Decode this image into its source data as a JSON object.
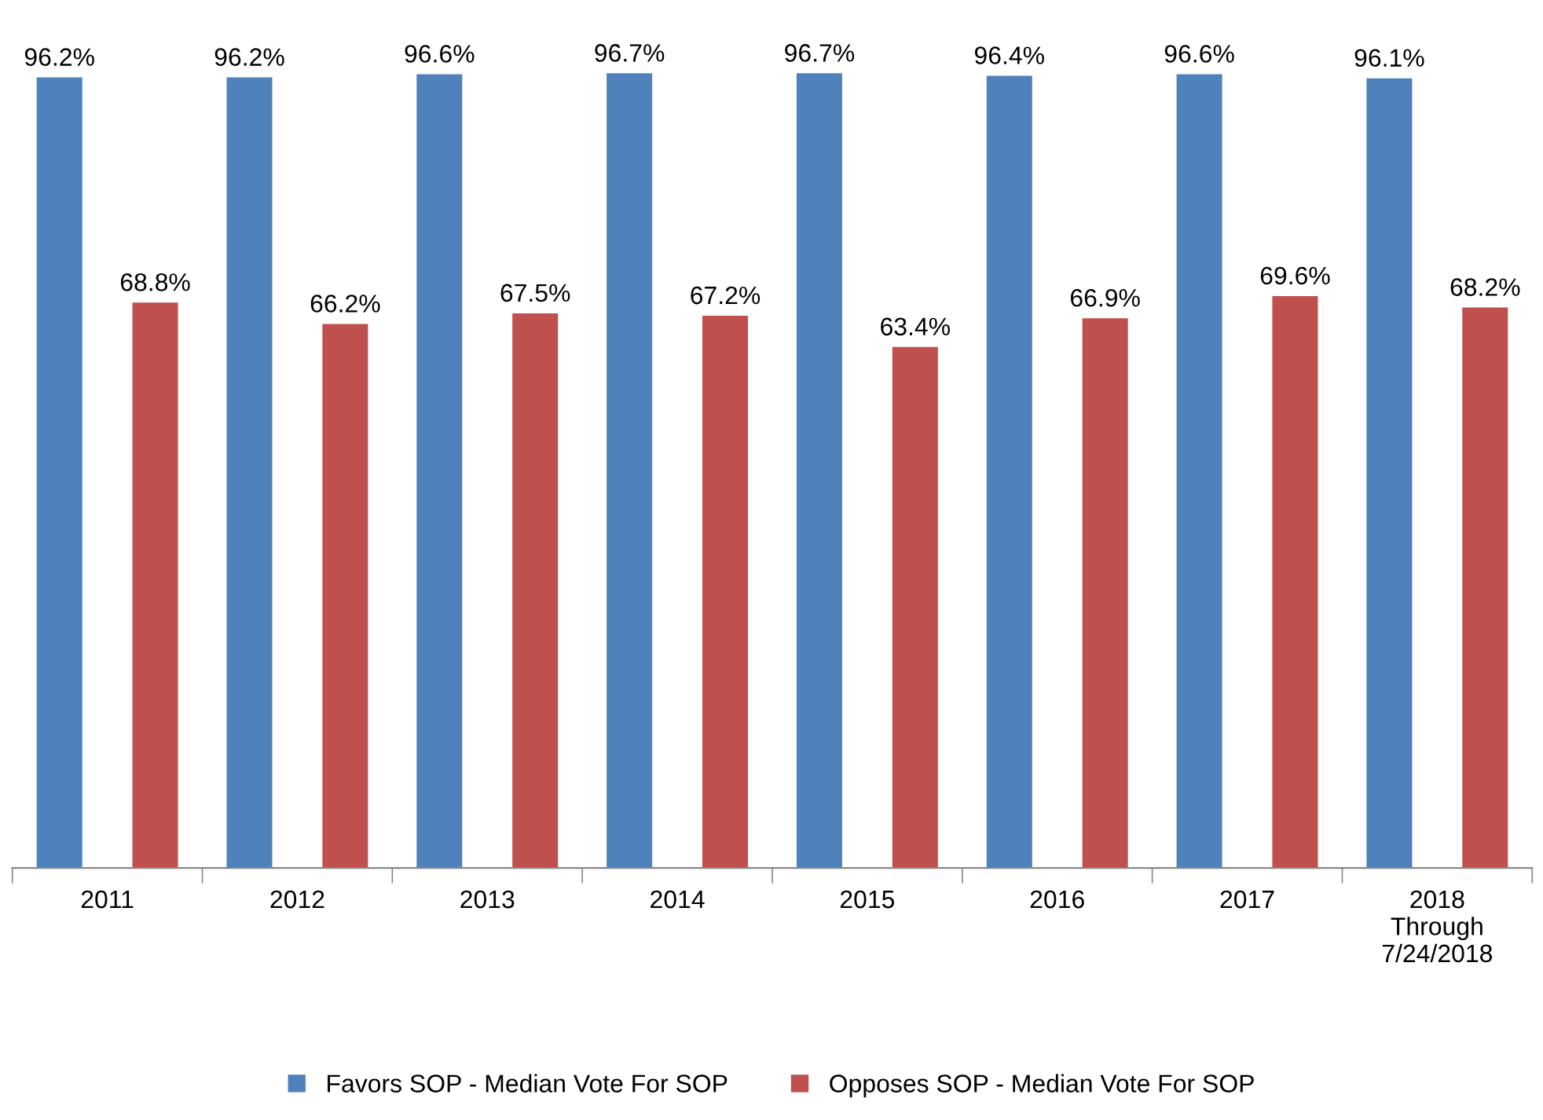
{
  "chart_data": {
    "type": "bar",
    "categories": [
      "2011",
      "2012",
      "2013",
      "2014",
      "2015",
      "2016",
      "2017",
      "2018\nThrough\n7/24/2018"
    ],
    "series": [
      {
        "name": "Favors SOP - Median Vote For SOP",
        "color": "#4f81bd",
        "values": [
          96.2,
          96.2,
          96.6,
          96.7,
          96.7,
          96.4,
          96.6,
          96.1
        ],
        "value_labels": [
          "96.2%",
          "96.2%",
          "96.6%",
          "96.7%",
          "96.7%",
          "96.4%",
          "96.6%",
          "96.1%"
        ]
      },
      {
        "name": "Opposes SOP - Median Vote For SOP",
        "color": "#c0504d",
        "values": [
          68.8,
          66.2,
          67.5,
          67.2,
          63.4,
          66.9,
          69.6,
          68.2
        ],
        "value_labels": [
          "68.8%",
          "66.2%",
          "67.5%",
          "67.2%",
          "63.4%",
          "66.9%",
          "69.6%",
          "68.2%"
        ]
      }
    ],
    "tick_labels": "x",
    "grid": false,
    "legend": "bottom"
  }
}
